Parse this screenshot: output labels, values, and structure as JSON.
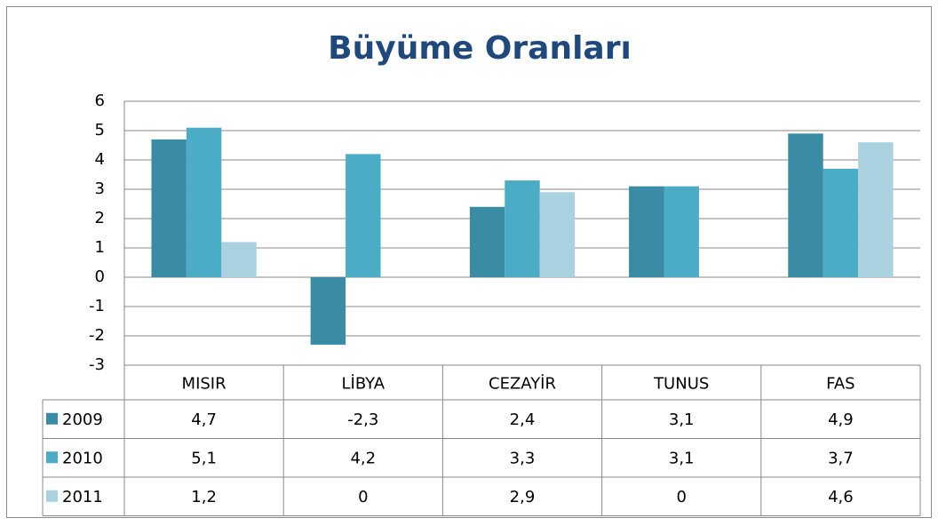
{
  "chart_data": {
    "type": "bar",
    "title": "Büyüme Oranları",
    "categories": [
      "MISIR",
      "LİBYA",
      "CEZAYİR",
      "TUNUS",
      "FAS"
    ],
    "series": [
      {
        "name": "2009",
        "color": "#3a8ca5",
        "values": [
          4.7,
          -2.3,
          2.4,
          3.1,
          4.9
        ],
        "value_labels": [
          "4,7",
          "-2,3",
          "2,4",
          "3,1",
          "4,9"
        ]
      },
      {
        "name": "2010",
        "color": "#4bacc6",
        "values": [
          5.1,
          4.2,
          3.3,
          3.1,
          3.7
        ],
        "value_labels": [
          "5,1",
          "4,2",
          "3,3",
          "3,1",
          "3,7"
        ]
      },
      {
        "name": "2011",
        "color": "#a9d1df",
        "values": [
          1.2,
          0,
          2.9,
          0,
          4.6
        ],
        "value_labels": [
          "1,2",
          "0",
          "2,9",
          "0",
          "4,6"
        ]
      }
    ],
    "ylim": [
      -3,
      6
    ],
    "yticks": [
      -3,
      -2,
      -1,
      0,
      1,
      2,
      3,
      4,
      5,
      6
    ],
    "grid": true,
    "legend": "table"
  }
}
